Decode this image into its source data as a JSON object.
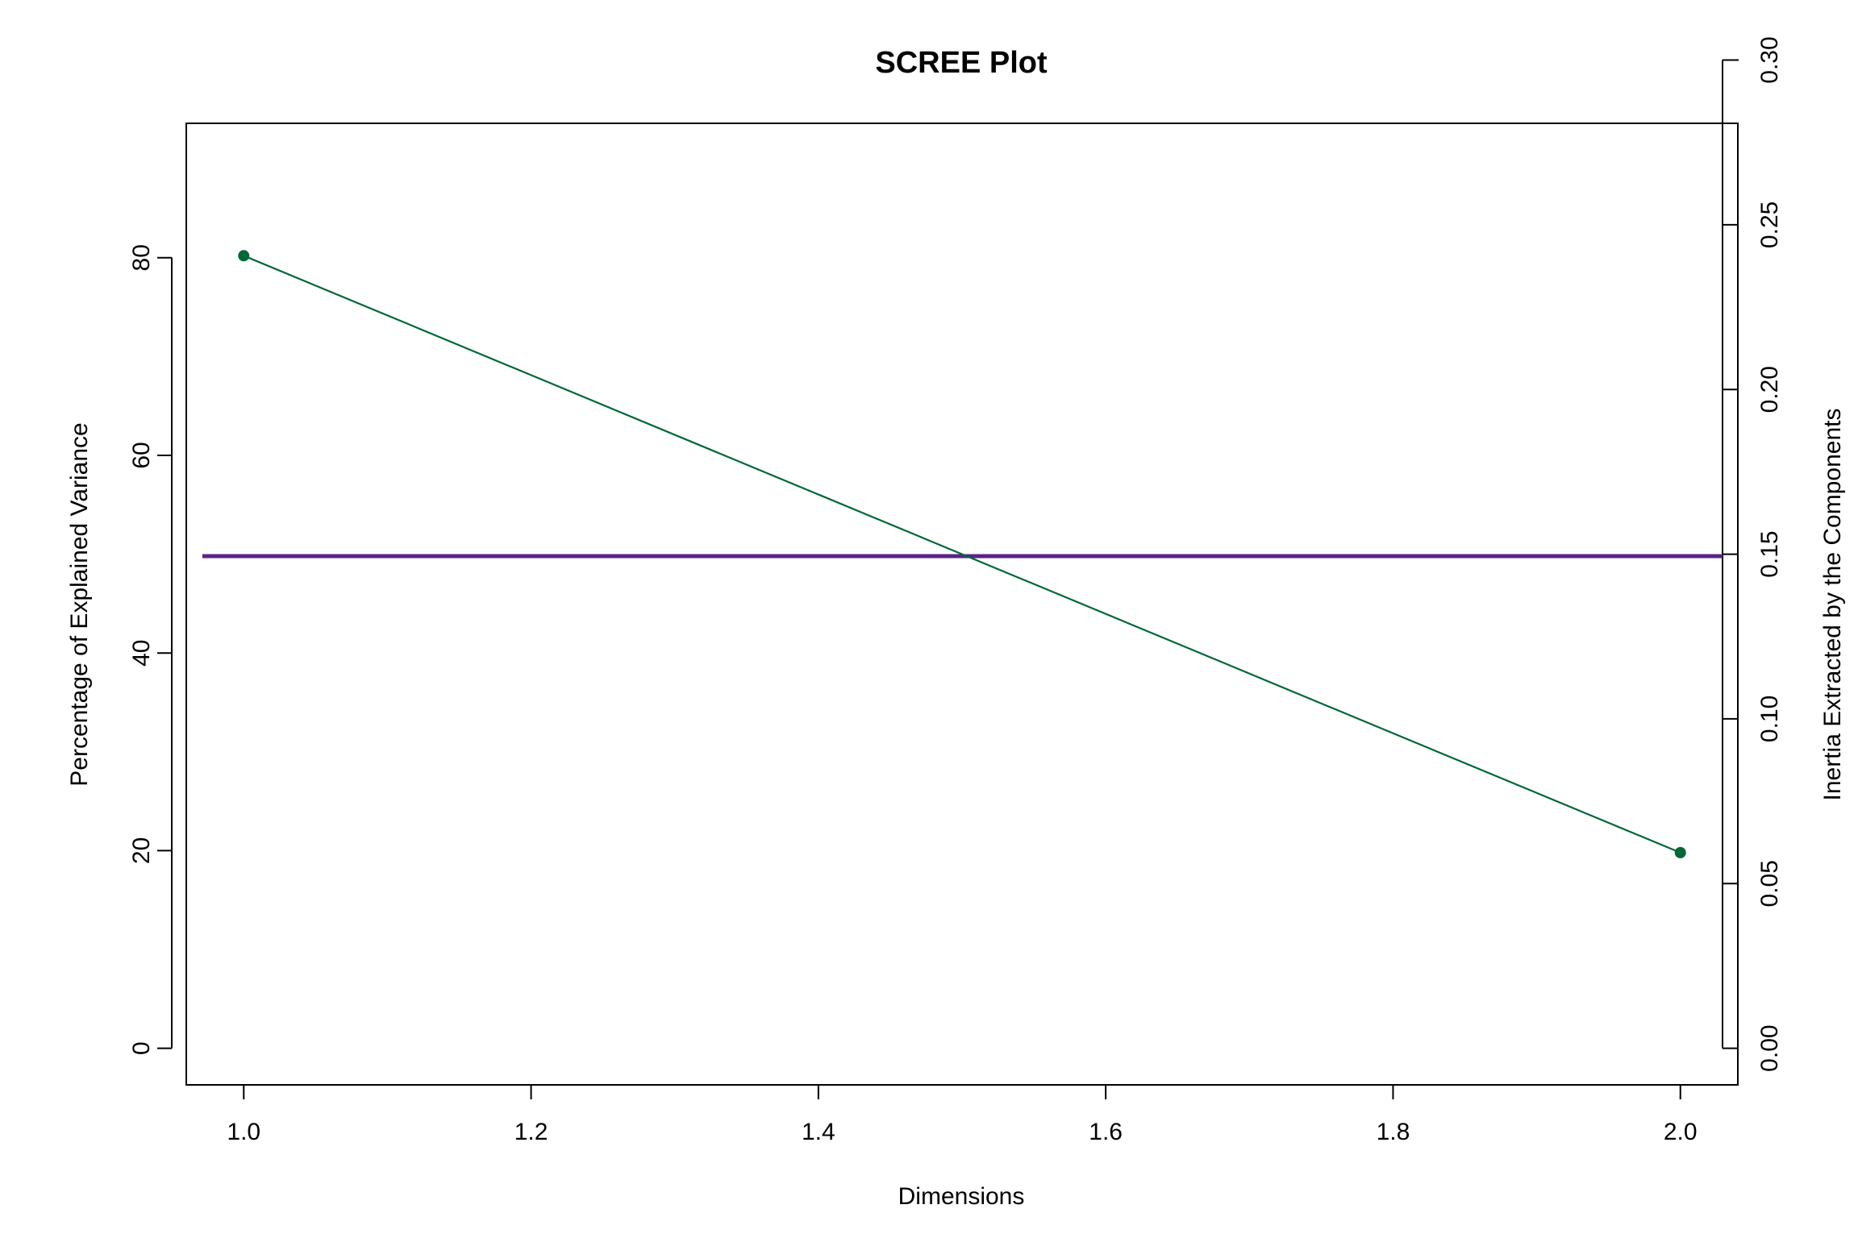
{
  "chart_data": {
    "type": "line",
    "title": "SCREE Plot",
    "xlabel": "Dimensions",
    "ylabel": "Percentage of Explained Variance",
    "y2label": "Inertia Extracted by the Components",
    "xlim": [
      0.96,
      2.04
    ],
    "ylim": [
      -3.7,
      93.6
    ],
    "y2lim": [
      0.0,
      0.3
    ],
    "x_ticks": [
      "1.0",
      "1.2",
      "1.4",
      "1.6",
      "1.8",
      "2.0"
    ],
    "x_tick_values": [
      1.0,
      1.2,
      1.4,
      1.6,
      1.8,
      2.0
    ],
    "y_ticks": [
      "0",
      "20",
      "40",
      "60",
      "80"
    ],
    "y_tick_values": [
      0,
      20,
      40,
      60,
      80
    ],
    "y2_ticks": [
      "0.00",
      "0.05",
      "0.10",
      "0.15",
      "0.20",
      "0.25",
      "0.30"
    ],
    "y2_tick_values": [
      0.0,
      0.05,
      0.1,
      0.15,
      0.2,
      0.25,
      0.3
    ],
    "series": [
      {
        "x": [
          1,
          2
        ],
        "values": [
          80.2,
          19.8
        ],
        "color": "#006837",
        "marker": "filled-circle"
      }
    ],
    "reference_lines": [
      {
        "orientation": "horizontal",
        "value": 49.8,
        "color": "#5b2389"
      }
    ],
    "grid": false,
    "legend": "none"
  }
}
